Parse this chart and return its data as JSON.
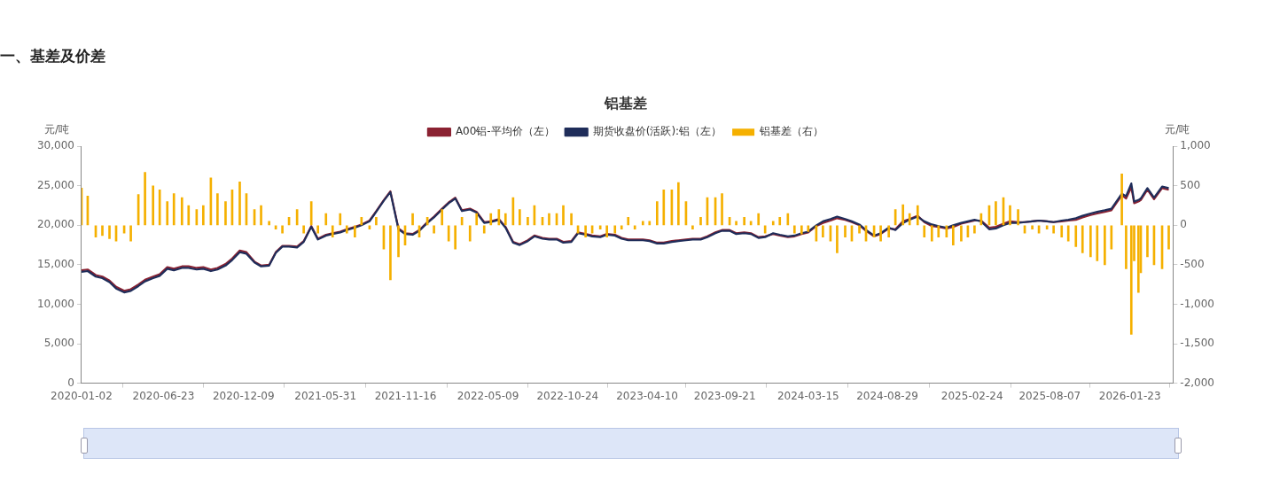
{
  "chart_data": {
    "type": "bar",
    "title": "铝基差",
    "ylabel": "元/吨",
    "y2label": "元/吨",
    "annotations": [
      "一、基差及价差"
    ],
    "legend": "top",
    "grid": false,
    "marker": "none",
    "line_style": "solid",
    "xlim": [
      "2020-01-02",
      "2026-04-24"
    ],
    "xticks": [
      "2020-01-02",
      "2020-06-23",
      "2020-12-09",
      "2021-05-31",
      "2021-11-16",
      "2022-05-09",
      "2022-10-24",
      "2023-04-10",
      "2023-09-21",
      "2024-03-15",
      "2024-08-29",
      "2025-02-24",
      "2025-08-07",
      "2026-01-23"
    ],
    "ylim": [
      0,
      30000
    ],
    "yticks": [
      0,
      {
        "value": 5000,
        "label": "5,000"
      },
      {
        "value": 10000,
        "label": "10,000"
      },
      {
        "value": 15000,
        "label": "15,000"
      },
      {
        "value": 20000,
        "label": "20,000"
      },
      {
        "value": 25000,
        "label": "25,000"
      },
      {
        "value": 30000,
        "label": "30,000"
      }
    ],
    "y2lim": [
      -2000,
      1000
    ],
    "y2ticks": [
      {
        "value": -2000,
        "label": "-2,000"
      },
      {
        "value": -1500,
        "label": "-1,500"
      },
      {
        "value": -1000,
        "label": "-1,000"
      },
      -500,
      0,
      500,
      {
        "value": 1000,
        "label": "1,000"
      }
    ],
    "x": [
      "2020-01-02",
      "2020-01-15",
      "2020-02-01",
      "2020-02-15",
      "2020-03-01",
      "2020-03-15",
      "2020-04-01",
      "2020-04-15",
      "2020-05-01",
      "2020-05-15",
      "2020-06-01",
      "2020-06-15",
      "2020-07-01",
      "2020-07-15",
      "2020-08-01",
      "2020-08-15",
      "2020-09-01",
      "2020-09-15",
      "2020-10-01",
      "2020-10-15",
      "2020-11-01",
      "2020-11-15",
      "2020-12-01",
      "2020-12-15",
      "2021-01-01",
      "2021-01-15",
      "2021-02-01",
      "2021-02-15",
      "2021-03-01",
      "2021-03-15",
      "2021-04-01",
      "2021-04-15",
      "2021-05-01",
      "2021-05-15",
      "2021-06-01",
      "2021-06-15",
      "2021-07-01",
      "2021-07-15",
      "2021-08-01",
      "2021-08-15",
      "2021-09-01",
      "2021-09-15",
      "2021-10-01",
      "2021-10-15",
      "2021-11-01",
      "2021-11-15",
      "2021-12-01",
      "2021-12-15",
      "2022-01-01",
      "2022-01-15",
      "2022-02-01",
      "2022-02-15",
      "2022-03-01",
      "2022-03-15",
      "2022-04-01",
      "2022-04-15",
      "2022-05-01",
      "2022-05-15",
      "2022-06-01",
      "2022-06-15",
      "2022-07-01",
      "2022-07-15",
      "2022-08-01",
      "2022-08-15",
      "2022-09-01",
      "2022-09-15",
      "2022-10-01",
      "2022-10-15",
      "2022-11-01",
      "2022-11-15",
      "2022-12-01",
      "2022-12-15",
      "2023-01-01",
      "2023-01-15",
      "2023-02-01",
      "2023-02-15",
      "2023-03-01",
      "2023-03-15",
      "2023-04-01",
      "2023-04-15",
      "2023-05-01",
      "2023-05-15",
      "2023-06-01",
      "2023-06-15",
      "2023-07-01",
      "2023-07-15",
      "2023-08-01",
      "2023-08-15",
      "2023-09-01",
      "2023-09-15",
      "2023-10-01",
      "2023-10-15",
      "2023-11-01",
      "2023-11-15",
      "2023-12-01",
      "2023-12-15",
      "2024-01-01",
      "2024-01-15",
      "2024-02-01",
      "2024-02-15",
      "2024-03-01",
      "2024-03-15",
      "2024-04-01",
      "2024-04-15",
      "2024-05-01",
      "2024-05-15",
      "2024-06-01",
      "2024-06-15",
      "2024-07-01",
      "2024-07-15",
      "2024-08-01",
      "2024-08-15",
      "2024-09-01",
      "2024-09-15",
      "2024-10-01",
      "2024-10-15",
      "2024-11-01",
      "2024-11-15",
      "2024-12-01",
      "2024-12-15",
      "2025-01-01",
      "2025-01-15",
      "2025-02-01",
      "2025-02-15",
      "2025-03-01",
      "2025-03-15",
      "2025-04-01",
      "2025-04-15",
      "2025-05-01",
      "2025-05-15",
      "2025-06-01",
      "2025-06-15",
      "2025-07-01",
      "2025-07-15",
      "2025-08-01",
      "2025-08-15",
      "2025-09-01",
      "2025-09-15",
      "2025-10-01",
      "2025-10-15",
      "2025-11-01",
      "2025-11-15",
      "2025-12-01",
      "2025-12-15",
      "2026-01-06",
      "2026-01-15",
      "2026-01-26",
      "2026-02-01",
      "2026-02-10",
      "2026-02-15",
      "2026-03-01",
      "2026-03-15",
      "2026-04-01",
      "2026-04-15"
    ],
    "series": [
      {
        "name": "A00铝-平均价（左）",
        "type": "line",
        "color": "#8b2232",
        "values": [
          14300,
          14400,
          13700,
          13500,
          13000,
          12200,
          11700,
          11900,
          12500,
          13100,
          13500,
          13800,
          14700,
          14500,
          14800,
          14800,
          14600,
          14700,
          14400,
          14600,
          15100,
          15800,
          16800,
          16600,
          15400,
          14900,
          15000,
          16600,
          17400,
          17400,
          17300,
          18000,
          19900,
          18300,
          18800,
          19000,
          19200,
          19500,
          19800,
          20100,
          20600,
          21800,
          23200,
          24300,
          19600,
          19000,
          18900,
          19400,
          20400,
          21100,
          22100,
          22900,
          23500,
          21900,
          22100,
          21700,
          20400,
          20500,
          20800,
          19800,
          17900,
          17600,
          18100,
          18700,
          18400,
          18300,
          18300,
          17900,
          18000,
          19100,
          18900,
          18700,
          18600,
          18900,
          18800,
          18400,
          18200,
          18200,
          18200,
          18100,
          17800,
          17800,
          18000,
          18100,
          18200,
          18300,
          18300,
          18600,
          19100,
          19400,
          19400,
          19000,
          19100,
          19000,
          18500,
          18600,
          18900,
          18700,
          18500,
          18600,
          18900,
          19100,
          19900,
          20300,
          20600,
          20900,
          20700,
          20400,
          20000,
          19300,
          18600,
          18900,
          19600,
          19500,
          20500,
          20800,
          21200,
          20400,
          19900,
          19800,
          19600,
          19800,
          20200,
          20400,
          20600,
          20600,
          19700,
          19800,
          20200,
          20500,
          20400,
          20400,
          20500,
          20600,
          20500,
          20400,
          20500,
          20600,
          20700,
          21000,
          21300,
          21500,
          21700,
          21900,
          23800,
          23400,
          24800,
          22800,
          23000,
          23200,
          24500,
          23300,
          24700,
          24500
        ]
      },
      {
        "name": "期货收盘价(活跃):铝（左）",
        "type": "line",
        "color": "#1f2d5a",
        "values": [
          14100,
          14200,
          13500,
          13300,
          12800,
          12000,
          11500,
          11700,
          12300,
          12900,
          13300,
          13600,
          14500,
          14300,
          14600,
          14600,
          14400,
          14500,
          14200,
          14400,
          14900,
          15600,
          16600,
          16400,
          15300,
          14800,
          14900,
          16500,
          17300,
          17300,
          17200,
          17900,
          19800,
          18200,
          18700,
          18900,
          19100,
          19400,
          19700,
          20000,
          20500,
          21700,
          23100,
          24200,
          19500,
          18900,
          18800,
          19300,
          20300,
          21000,
          22000,
          22800,
          23400,
          21800,
          22000,
          21600,
          20300,
          20400,
          20700,
          19700,
          17800,
          17500,
          18000,
          18600,
          18300,
          18200,
          18200,
          17800,
          17900,
          19000,
          18800,
          18600,
          18500,
          18800,
          18700,
          18300,
          18100,
          18100,
          18100,
          18000,
          17700,
          17700,
          17900,
          18000,
          18100,
          18200,
          18200,
          18500,
          19000,
          19300,
          19300,
          18900,
          19000,
          18900,
          18400,
          18500,
          19000,
          18800,
          18600,
          18700,
          19000,
          19200,
          20000,
          20500,
          20800,
          21100,
          20800,
          20500,
          20100,
          19400,
          18700,
          19000,
          19700,
          19400,
          20300,
          20700,
          21100,
          20500,
          20100,
          19900,
          19700,
          20000,
          20300,
          20500,
          20700,
          20500,
          19500,
          19600,
          20000,
          20300,
          20300,
          20400,
          20500,
          20600,
          20500,
          20400,
          20600,
          20700,
          20900,
          21200,
          21500,
          21700,
          21900,
          22100,
          24000,
          23700,
          25300,
          23000,
          23200,
          23400,
          24700,
          23500,
          24900,
          24700
        ]
      },
      {
        "name": "铝基差（右）",
        "axis": "y2",
        "color": "#f5b000",
        "values": [
          470,
          370,
          -150,
          -130,
          -170,
          -200,
          -100,
          -200,
          390,
          670,
          500,
          450,
          300,
          400,
          350,
          250,
          200,
          250,
          600,
          400,
          300,
          450,
          550,
          400,
          200,
          250,
          50,
          -50,
          -100,
          100,
          200,
          -100,
          300,
          -100,
          150,
          -150,
          150,
          -100,
          -150,
          100,
          -50,
          100,
          -300,
          -690,
          -400,
          -250,
          150,
          -150,
          100,
          -100,
          200,
          -200,
          -300,
          100,
          -200,
          150,
          -100,
          150,
          200,
          150,
          350,
          200,
          100,
          250,
          100,
          150,
          150,
          250,
          150,
          -100,
          -150,
          -100,
          -50,
          -150,
          -100,
          -50,
          100,
          -50,
          50,
          50,
          300,
          450,
          450,
          540,
          300,
          -50,
          100,
          350,
          350,
          400,
          100,
          50,
          100,
          50,
          150,
          -100,
          50,
          100,
          150,
          -100,
          -110,
          -80,
          -200,
          -150,
          -200,
          -350,
          -150,
          -200,
          -100,
          -200,
          -150,
          -200,
          -150,
          200,
          260,
          150,
          250,
          -150,
          -200,
          -150,
          -150,
          -250,
          -200,
          -150,
          -100,
          150,
          250,
          300,
          350,
          250,
          200,
          -100,
          -50,
          -100,
          -50,
          -100,
          -150,
          -200,
          -270,
          -350,
          -400,
          -450,
          -500,
          -300,
          650,
          -550,
          -1380,
          -450,
          -850,
          -600,
          -400,
          -500,
          -550,
          -300
        ]
      }
    ]
  }
}
